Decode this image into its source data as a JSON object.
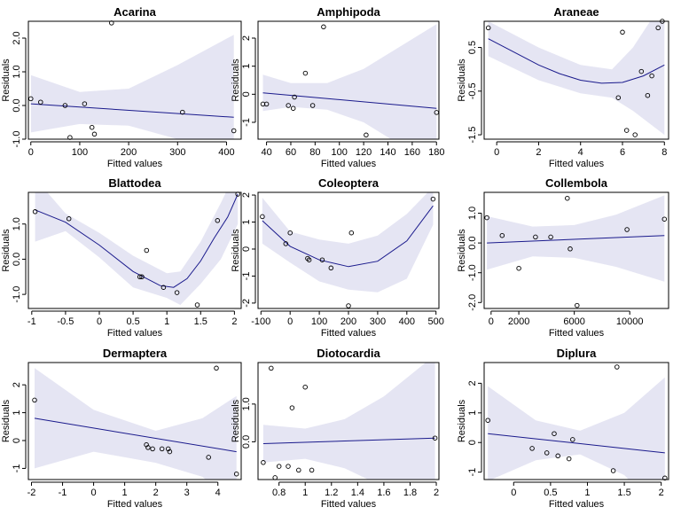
{
  "chart_data": [
    {
      "type": "scatter",
      "title": "Acarina",
      "xlabel": "Fitted values",
      "ylabel": "Residuals",
      "xlim": [
        -5,
        430
      ],
      "ylim": [
        -1.0,
        2.5
      ],
      "xticks": [
        0,
        100,
        200,
        300,
        400
      ],
      "yticks": [
        -1.0,
        0.0,
        1.0,
        2.0
      ],
      "ytick_labels": [
        "-1.0",
        "0.0",
        "1.0",
        "2.0"
      ],
      "points": [
        [
          0,
          0.2
        ],
        [
          20,
          0.1
        ],
        [
          70,
          0.0
        ],
        [
          80,
          -0.95
        ],
        [
          110,
          0.05
        ],
        [
          125,
          -0.65
        ],
        [
          130,
          -0.85
        ],
        [
          165,
          2.45
        ],
        [
          310,
          -0.2
        ],
        [
          415,
          -0.75
        ]
      ],
      "fit": [
        [
          0,
          0.05
        ],
        [
          415,
          -0.35
        ]
      ],
      "band_upper": [
        [
          0,
          0.9
        ],
        [
          100,
          0.4
        ],
        [
          200,
          0.5
        ],
        [
          300,
          1.2
        ],
        [
          415,
          2.1
        ]
      ],
      "band_lower": [
        [
          0,
          -0.8
        ],
        [
          100,
          -0.55
        ],
        [
          200,
          -0.6
        ],
        [
          300,
          -1.0
        ],
        [
          415,
          -1.5
        ]
      ]
    },
    {
      "type": "scatter",
      "title": "Amphipoda",
      "xlabel": "Fitted values",
      "ylabel": "Residuals",
      "xlim": [
        33,
        182
      ],
      "ylim": [
        -1.6,
        2.6
      ],
      "xticks": [
        40,
        60,
        80,
        100,
        120,
        140,
        160,
        180
      ],
      "yticks": [
        -1,
        0,
        1,
        2
      ],
      "ytick_labels": [
        "-1",
        "0",
        "1",
        "2"
      ],
      "points": [
        [
          37,
          -0.35
        ],
        [
          40,
          -0.35
        ],
        [
          58,
          -0.4
        ],
        [
          62,
          -0.5
        ],
        [
          63,
          -0.1
        ],
        [
          72,
          0.75
        ],
        [
          78,
          -0.4
        ],
        [
          87,
          2.4
        ],
        [
          122,
          -1.45
        ],
        [
          180,
          -0.65
        ]
      ],
      "fit": [
        [
          37,
          0.05
        ],
        [
          180,
          -0.5
        ]
      ],
      "band_upper": [
        [
          37,
          0.7
        ],
        [
          60,
          0.4
        ],
        [
          90,
          0.4
        ],
        [
          120,
          0.9
        ],
        [
          150,
          1.7
        ],
        [
          180,
          2.5
        ]
      ],
      "band_lower": [
        [
          37,
          -0.6
        ],
        [
          60,
          -0.45
        ],
        [
          90,
          -0.55
        ],
        [
          120,
          -1.0
        ],
        [
          150,
          -1.8
        ],
        [
          180,
          -2.6
        ]
      ]
    },
    {
      "type": "scatter",
      "title": "Araneae",
      "xlabel": "Fitted values",
      "ylabel": "Residuals",
      "xlim": [
        -0.6,
        8.2
      ],
      "ylim": [
        -1.6,
        1.1
      ],
      "xticks": [
        0,
        2,
        4,
        6,
        8
      ],
      "yticks": [
        -1.5,
        -0.5,
        0.5
      ],
      "ytick_labels": [
        "-1.5",
        "-0.5",
        "0.5"
      ],
      "points": [
        [
          -0.4,
          0.95
        ],
        [
          5.8,
          -0.65
        ],
        [
          6.0,
          0.85
        ],
        [
          6.2,
          -1.4
        ],
        [
          6.6,
          -1.5
        ],
        [
          6.9,
          -0.05
        ],
        [
          7.2,
          -0.6
        ],
        [
          7.4,
          -0.15
        ],
        [
          7.7,
          0.95
        ],
        [
          7.9,
          1.1
        ]
      ],
      "fit": [
        [
          -0.4,
          0.7
        ],
        [
          1,
          0.35
        ],
        [
          2,
          0.1
        ],
        [
          3,
          -0.1
        ],
        [
          4,
          -0.25
        ],
        [
          5,
          -0.32
        ],
        [
          6,
          -0.3
        ],
        [
          7,
          -0.15
        ],
        [
          8,
          0.1
        ]
      ],
      "band_upper": [
        [
          -0.4,
          1.1
        ],
        [
          2,
          0.5
        ],
        [
          4,
          0.1
        ],
        [
          5.5,
          0.0
        ],
        [
          6.5,
          0.5
        ],
        [
          8,
          1.6
        ]
      ],
      "band_lower": [
        [
          -0.4,
          0.3
        ],
        [
          2,
          -0.25
        ],
        [
          4,
          -0.55
        ],
        [
          5.5,
          -0.65
        ],
        [
          6.5,
          -0.95
        ],
        [
          8,
          -1.5
        ]
      ]
    },
    {
      "type": "scatter",
      "title": "Blattodea",
      "xlabel": "Fitted values",
      "ylabel": "Residuals",
      "xlim": [
        -1.05,
        2.1
      ],
      "ylim": [
        -1.4,
        1.9
      ],
      "xticks": [
        -1.0,
        -0.5,
        0.0,
        0.5,
        1.0,
        1.5,
        2.0
      ],
      "yticks": [
        -1.0,
        0.0,
        1.0
      ],
      "ytick_labels": [
        "-1.0",
        "0.0",
        "1.0"
      ],
      "points": [
        [
          -0.95,
          1.35
        ],
        [
          -0.45,
          1.15
        ],
        [
          0.6,
          -0.5
        ],
        [
          0.63,
          -0.5
        ],
        [
          0.7,
          0.25
        ],
        [
          0.95,
          -0.8
        ],
        [
          1.15,
          -0.95
        ],
        [
          1.45,
          -1.3
        ],
        [
          1.75,
          1.1
        ],
        [
          2.05,
          1.85
        ]
      ],
      "fit": [
        [
          -0.95,
          1.4
        ],
        [
          -0.5,
          1.05
        ],
        [
          0.0,
          0.4
        ],
        [
          0.5,
          -0.35
        ],
        [
          0.9,
          -0.75
        ],
        [
          1.1,
          -0.8
        ],
        [
          1.3,
          -0.55
        ],
        [
          1.5,
          -0.05
        ],
        [
          1.7,
          0.6
        ],
        [
          1.9,
          1.2
        ],
        [
          2.05,
          1.85
        ]
      ],
      "band_upper": [
        [
          -0.95,
          2.3
        ],
        [
          -0.5,
          1.3
        ],
        [
          0.0,
          0.75
        ],
        [
          0.5,
          0.1
        ],
        [
          1.0,
          -0.4
        ],
        [
          1.2,
          -0.35
        ],
        [
          1.5,
          0.5
        ],
        [
          1.8,
          1.6
        ],
        [
          2.05,
          2.6
        ]
      ],
      "band_lower": [
        [
          -0.95,
          0.5
        ],
        [
          -0.5,
          0.8
        ],
        [
          0.0,
          0.05
        ],
        [
          0.5,
          -0.8
        ],
        [
          1.0,
          -1.1
        ],
        [
          1.2,
          -1.3
        ],
        [
          1.5,
          -0.7
        ],
        [
          1.8,
          0.0
        ],
        [
          2.05,
          1.0
        ]
      ]
    },
    {
      "type": "scatter",
      "title": "Coleoptera",
      "xlabel": "Fitted values",
      "ylabel": "Residuals",
      "xlim": [
        -110,
        510
      ],
      "ylim": [
        -2.2,
        2.1
      ],
      "xticks": [
        -100,
        0,
        100,
        200,
        300,
        400,
        500
      ],
      "yticks": [
        -2,
        -1,
        0,
        1,
        2
      ],
      "ytick_labels": [
        "-2",
        "-1",
        "0",
        "1",
        "2"
      ],
      "points": [
        [
          -95,
          1.2
        ],
        [
          -15,
          0.2
        ],
        [
          0,
          0.6
        ],
        [
          60,
          -0.35
        ],
        [
          65,
          -0.4
        ],
        [
          110,
          -0.4
        ],
        [
          140,
          -0.7
        ],
        [
          200,
          -2.1
        ],
        [
          210,
          0.6
        ],
        [
          490,
          1.85
        ]
      ],
      "fit": [
        [
          -95,
          1.05
        ],
        [
          0,
          0.1
        ],
        [
          100,
          -0.4
        ],
        [
          200,
          -0.65
        ],
        [
          300,
          -0.45
        ],
        [
          400,
          0.3
        ],
        [
          490,
          1.6
        ]
      ],
      "band_upper": [
        [
          -95,
          1.9
        ],
        [
          0,
          0.65
        ],
        [
          100,
          0.35
        ],
        [
          200,
          0.2
        ],
        [
          300,
          0.5
        ],
        [
          400,
          1.3
        ],
        [
          490,
          2.3
        ]
      ],
      "band_lower": [
        [
          -95,
          0.2
        ],
        [
          0,
          -0.5
        ],
        [
          100,
          -1.2
        ],
        [
          200,
          -1.5
        ],
        [
          300,
          -1.6
        ],
        [
          400,
          -1.1
        ],
        [
          490,
          0.9
        ]
      ]
    },
    {
      "type": "scatter",
      "title": "Collembola",
      "xlabel": "Fitted values",
      "ylabel": "Residuals",
      "xlim": [
        -500,
        12800
      ],
      "ylim": [
        -2.2,
        1.7
      ],
      "xticks": [
        0,
        2000,
        6000,
        10000
      ],
      "yticks": [
        -2.0,
        -1.0,
        0.0,
        1.0
      ],
      "ytick_labels": [
        "-2.0",
        "-1.0",
        "0.0",
        "1.0"
      ],
      "points": [
        [
          -300,
          0.85
        ],
        [
          800,
          0.25
        ],
        [
          2000,
          -0.85
        ],
        [
          3200,
          0.2
        ],
        [
          4300,
          0.2
        ],
        [
          5500,
          1.5
        ],
        [
          5700,
          -0.2
        ],
        [
          6200,
          -2.1
        ],
        [
          9800,
          0.45
        ],
        [
          12500,
          0.8
        ]
      ],
      "fit": [
        [
          -300,
          0.0
        ],
        [
          12500,
          0.25
        ]
      ],
      "band_upper": [
        [
          -300,
          0.9
        ],
        [
          3000,
          0.55
        ],
        [
          6000,
          0.6
        ],
        [
          9000,
          0.95
        ],
        [
          12500,
          1.6
        ]
      ],
      "band_lower": [
        [
          -300,
          -0.9
        ],
        [
          3000,
          -0.45
        ],
        [
          6000,
          -0.5
        ],
        [
          9000,
          -0.8
        ],
        [
          12500,
          -1.3
        ]
      ]
    },
    {
      "type": "scatter",
      "title": "Dermaptera",
      "xlabel": "Fitted values",
      "ylabel": "Residuals",
      "xlim": [
        -2.1,
        4.75
      ],
      "ylim": [
        -1.4,
        2.8
      ],
      "xticks": [
        -2,
        -1,
        0,
        1,
        2,
        3,
        4
      ],
      "yticks": [
        -1,
        0,
        1,
        2
      ],
      "ytick_labels": [
        "-1",
        "0",
        "1",
        "2"
      ],
      "points": [
        [
          -1.9,
          1.45
        ],
        [
          1.7,
          -0.15
        ],
        [
          1.75,
          -0.25
        ],
        [
          1.9,
          -0.3
        ],
        [
          2.2,
          -0.3
        ],
        [
          2.4,
          -0.3
        ],
        [
          2.45,
          -0.4
        ],
        [
          3.7,
          -0.6
        ],
        [
          3.95,
          2.6
        ],
        [
          4.6,
          -1.2
        ]
      ],
      "fit": [
        [
          -1.9,
          0.8
        ],
        [
          4.6,
          -0.4
        ]
      ],
      "band_upper": [
        [
          -1.9,
          2.6
        ],
        [
          0,
          1.1
        ],
        [
          2,
          0.35
        ],
        [
          3.5,
          0.8
        ],
        [
          4.6,
          1.6
        ]
      ],
      "band_lower": [
        [
          -1.9,
          -1.0
        ],
        [
          0,
          -0.4
        ],
        [
          2,
          -0.8
        ],
        [
          3.5,
          -1.3
        ],
        [
          4.6,
          -2.3
        ]
      ]
    },
    {
      "type": "scatter",
      "title": "Diotocardia",
      "xlabel": "Fitted values",
      "ylabel": "Residuals",
      "xlim": [
        0.64,
        2.02
      ],
      "ylim": [
        -1.0,
        2.1
      ],
      "xticks": [
        0.8,
        1.0,
        1.2,
        1.4,
        1.6,
        1.8,
        2.0
      ],
      "yticks": [
        0.0,
        1.0
      ],
      "ytick_labels": [
        "0.0",
        "1.0"
      ],
      "points": [
        [
          0.68,
          -0.55
        ],
        [
          0.74,
          1.95
        ],
        [
          0.77,
          -0.95
        ],
        [
          0.8,
          -0.65
        ],
        [
          0.87,
          -0.65
        ],
        [
          0.9,
          0.9
        ],
        [
          0.95,
          -0.75
        ],
        [
          1.0,
          1.45
        ],
        [
          1.05,
          -0.75
        ],
        [
          1.99,
          0.1
        ]
      ],
      "fit": [
        [
          0.68,
          -0.05
        ],
        [
          1.99,
          0.1
        ]
      ],
      "band_upper": [
        [
          0.68,
          0.45
        ],
        [
          1.0,
          0.35
        ],
        [
          1.3,
          0.6
        ],
        [
          1.6,
          1.2
        ],
        [
          1.99,
          2.3
        ]
      ],
      "band_lower": [
        [
          0.68,
          -0.55
        ],
        [
          1.0,
          -0.45
        ],
        [
          1.3,
          -0.7
        ],
        [
          1.6,
          -1.2
        ],
        [
          1.99,
          -2.0
        ]
      ]
    },
    {
      "type": "scatter",
      "title": "Diplura",
      "xlabel": "Fitted values",
      "ylabel": "Residuals",
      "xlim": [
        -0.4,
        2.1
      ],
      "ylim": [
        -1.25,
        2.7
      ],
      "xticks": [
        0.0,
        0.5,
        1.0,
        1.5,
        2.0
      ],
      "yticks": [
        -1,
        0,
        1,
        2
      ],
      "ytick_labels": [
        "-1",
        "0",
        "1",
        "2"
      ],
      "points": [
        [
          -0.35,
          0.75
        ],
        [
          0.25,
          -0.2
        ],
        [
          0.45,
          -0.35
        ],
        [
          0.55,
          0.3
        ],
        [
          0.6,
          -0.45
        ],
        [
          0.75,
          -0.55
        ],
        [
          0.8,
          0.1
        ],
        [
          1.35,
          -0.95
        ],
        [
          1.4,
          2.55
        ],
        [
          2.05,
          -1.2
        ]
      ],
      "fit": [
        [
          -0.35,
          0.3
        ],
        [
          2.05,
          -0.35
        ]
      ],
      "band_upper": [
        [
          -0.35,
          1.9
        ],
        [
          0.3,
          0.75
        ],
        [
          0.9,
          0.4
        ],
        [
          1.5,
          1.0
        ],
        [
          2.05,
          2.2
        ]
      ],
      "band_lower": [
        [
          -0.35,
          -1.3
        ],
        [
          0.3,
          -0.6
        ],
        [
          0.9,
          -0.4
        ],
        [
          1.5,
          -1.1
        ],
        [
          2.05,
          -2.5
        ]
      ]
    }
  ],
  "colors": {
    "band": "#e5e5f3",
    "fit_line": "#1a1a8c",
    "points": "#000000",
    "axis": "#000000"
  }
}
